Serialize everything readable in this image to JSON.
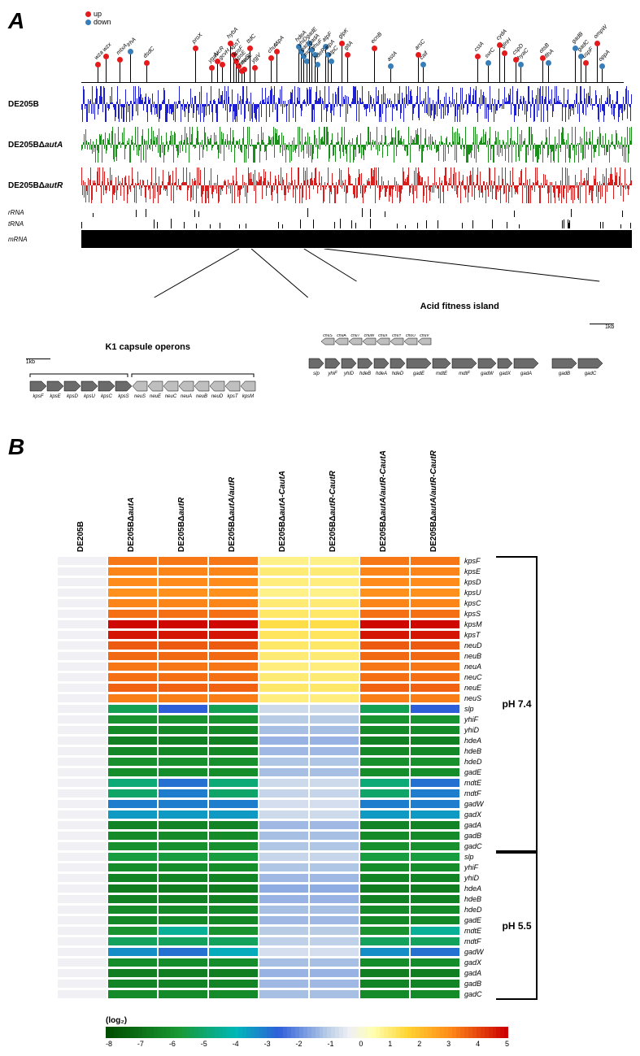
{
  "panelA": {
    "label": "A",
    "legend": {
      "up": "up",
      "up_color": "#e41a1c",
      "down": "down",
      "down_color": "#377eb8"
    },
    "lollipops": [
      {
        "x": 3,
        "h": 18,
        "dir": "up",
        "label": "wza"
      },
      {
        "x": 4.5,
        "h": 28,
        "dir": "up",
        "label": "wzx"
      },
      {
        "x": 7,
        "h": 24,
        "dir": "up",
        "label": "mtxA"
      },
      {
        "x": 9,
        "h": 34,
        "dir": "down",
        "label": "lrhA"
      },
      {
        "x": 12,
        "h": 20,
        "dir": "up",
        "label": "dsdC"
      },
      {
        "x": 21,
        "h": 38,
        "dir": "up",
        "label": "proX"
      },
      {
        "x": 24,
        "h": 14,
        "dir": "up",
        "label": "ygaV"
      },
      {
        "x": 25,
        "h": 22,
        "dir": "up",
        "label": "fucR"
      },
      {
        "x": 26,
        "h": 18,
        "dir": "up",
        "label": "gcvH"
      },
      {
        "x": 27.5,
        "h": 44,
        "dir": "up",
        "label": "hybA"
      },
      {
        "x": 28,
        "h": 30,
        "dir": "up",
        "label": "kpsT"
      },
      {
        "x": 28.5,
        "h": 22,
        "dir": "up",
        "label": "kpsF"
      },
      {
        "x": 29,
        "h": 16,
        "dir": "up",
        "label": "kpsE"
      },
      {
        "x": 29.5,
        "h": 10,
        "dir": "up",
        "label": "neuS"
      },
      {
        "x": 30,
        "h": 12,
        "dir": "up",
        "label": "neuE"
      },
      {
        "x": 31,
        "h": 38,
        "dir": "up",
        "label": "ttdC"
      },
      {
        "x": 32,
        "h": 14,
        "dir": "up",
        "label": "ygjV"
      },
      {
        "x": 35,
        "h": 26,
        "dir": "up",
        "label": "chuV"
      },
      {
        "x": 36,
        "h": 34,
        "dir": "up",
        "label": "cspA"
      },
      {
        "x": 40,
        "h": 40,
        "dir": "down",
        "label": "hdeA"
      },
      {
        "x": 40.5,
        "h": 34,
        "dir": "down",
        "label": "yhiD"
      },
      {
        "x": 41,
        "h": 28,
        "dir": "down",
        "label": "gadX"
      },
      {
        "x": 41.5,
        "h": 22,
        "dir": "down",
        "label": "mdtF"
      },
      {
        "x": 42,
        "h": 44,
        "dir": "down",
        "label": "gadE"
      },
      {
        "x": 42.5,
        "h": 36,
        "dir": "down",
        "label": "gadA"
      },
      {
        "x": 43,
        "h": 30,
        "dir": "down",
        "label": "yhuF"
      },
      {
        "x": 43.5,
        "h": 18,
        "dir": "down",
        "label": "hdeR"
      },
      {
        "x": 45,
        "h": 40,
        "dir": "down",
        "label": "atpF"
      },
      {
        "x": 45.5,
        "h": 30,
        "dir": "down",
        "label": "atpA"
      },
      {
        "x": 46,
        "h": 22,
        "dir": "down",
        "label": "atpC"
      },
      {
        "x": 48,
        "h": 44,
        "dir": "up",
        "label": "glpK"
      },
      {
        "x": 49,
        "h": 30,
        "dir": "up",
        "label": "gltA"
      },
      {
        "x": 54,
        "h": 38,
        "dir": "up",
        "label": "ecnB"
      },
      {
        "x": 57,
        "h": 16,
        "dir": "down",
        "label": "astA"
      },
      {
        "x": 62,
        "h": 30,
        "dir": "up",
        "label": "arsC"
      },
      {
        "x": 63,
        "h": 18,
        "dir": "down",
        "label": "caif"
      },
      {
        "x": 73,
        "h": 28,
        "dir": "up",
        "label": "cstA"
      },
      {
        "x": 75,
        "h": 20,
        "dir": "down",
        "label": "svrC"
      },
      {
        "x": 77,
        "h": 42,
        "dir": "up",
        "label": "cydA"
      },
      {
        "x": 78,
        "h": 32,
        "dir": "up",
        "label": "glnH"
      },
      {
        "x": 80,
        "h": 24,
        "dir": "up",
        "label": "cspD"
      },
      {
        "x": 81,
        "h": 18,
        "dir": "down",
        "label": "hyaC"
      },
      {
        "x": 85,
        "h": 26,
        "dir": "up",
        "label": "otsB"
      },
      {
        "x": 86,
        "h": 20,
        "dir": "down",
        "label": "flhA"
      },
      {
        "x": 91,
        "h": 38,
        "dir": "down",
        "label": "gadB"
      },
      {
        "x": 92,
        "h": 28,
        "dir": "down",
        "label": "gadC"
      },
      {
        "x": 93,
        "h": 20,
        "dir": "up",
        "label": "uspF"
      },
      {
        "x": 95,
        "h": 44,
        "dir": "up",
        "label": "ompW"
      },
      {
        "x": 96,
        "h": 16,
        "dir": "down",
        "label": "oppA"
      }
    ],
    "tracks": [
      {
        "label_prefix": "DE205B",
        "label_suffix": "",
        "color": "#1f1fd6"
      },
      {
        "label_prefix": "DE205BΔ",
        "label_suffix": "autA",
        "color": "#1a8f1a"
      },
      {
        "label_prefix": "DE205BΔ",
        "label_suffix": "autR",
        "color": "#d62020"
      }
    ],
    "rna_labels": [
      "rRNA",
      "tRNA",
      "mRNA"
    ],
    "operons": {
      "k1": {
        "title": "K1 capsule operons",
        "scale": "1kb",
        "genes_fwd": [
          "kpsF",
          "kpsE",
          "kpsD",
          "kpsU",
          "kpsC",
          "kpsS"
        ],
        "genes_rev": [
          "neuS",
          "neuE",
          "neuC",
          "neuA",
          "neuB",
          "neuD",
          "kpsT",
          "kpsM"
        ],
        "dark": "#6b6b6b",
        "light": "#bfbfbf"
      },
      "afi": {
        "title": "Acid fitness island",
        "scale": "1kb",
        "genes_top_rev": [
          "chuS",
          "chuA",
          "chuT",
          "chuW",
          "chuX",
          "chuY",
          "chuU",
          "chuV"
        ],
        "genes_bot": [
          "slp",
          "yhiF",
          "yhiD",
          "hdeB",
          "hdeA",
          "hdeD",
          "gadE",
          "mdtE",
          "mdtF",
          "gadW",
          "gadX",
          "gadA",
          "gadB",
          "gadC"
        ],
        "dark": "#6b6b6b",
        "light": "#bfbfbf"
      }
    }
  },
  "panelB": {
    "label": "B",
    "columns": [
      {
        "pre": "DE205B",
        "suf": ""
      },
      {
        "pre": "DE205BΔ",
        "suf": "autA"
      },
      {
        "pre": "DE205BΔ",
        "suf": "autR"
      },
      {
        "pre": "DE205BΔ",
        "suf": "autA/autR"
      },
      {
        "pre": "DE205BΔ",
        "suf": "autA-CautA"
      },
      {
        "pre": "DE205BΔ",
        "suf": "autR-CautR"
      },
      {
        "pre": "DE205BΔ",
        "suf": "autA/autR-CautA"
      },
      {
        "pre": "DE205BΔ",
        "suf": "autA/autR-CautR"
      }
    ],
    "rows": [
      {
        "g": "kpsF",
        "v": [
          0,
          3.8,
          3.8,
          3.8,
          1.2,
          1.2,
          3.8,
          3.8
        ],
        "ph": "7.4"
      },
      {
        "g": "kpsE",
        "v": [
          0,
          3.6,
          3.6,
          3.6,
          1.4,
          1.4,
          3.6,
          3.6
        ],
        "ph": "7.4"
      },
      {
        "g": "kpsD",
        "v": [
          0,
          3.5,
          3.5,
          3.5,
          1.3,
          1.3,
          3.5,
          3.5
        ],
        "ph": "7.4"
      },
      {
        "g": "kpsU",
        "v": [
          0,
          3.4,
          3.4,
          3.4,
          1.2,
          1.2,
          3.4,
          3.4
        ],
        "ph": "7.4"
      },
      {
        "g": "kpsC",
        "v": [
          0,
          3.6,
          3.6,
          3.6,
          1.4,
          1.4,
          3.6,
          3.6
        ],
        "ph": "7.4"
      },
      {
        "g": "kpsS",
        "v": [
          0,
          3.9,
          3.9,
          3.9,
          1.5,
          1.5,
          3.9,
          3.9
        ],
        "ph": "7.4"
      },
      {
        "g": "kpsM",
        "v": [
          0,
          5.4,
          5.4,
          5.4,
          1.8,
          1.8,
          5.4,
          5.4
        ],
        "ph": "7.4"
      },
      {
        "g": "kpsT",
        "v": [
          0,
          5.2,
          5.2,
          5.2,
          1.6,
          1.6,
          5.2,
          5.2
        ],
        "ph": "7.4"
      },
      {
        "g": "neuD",
        "v": [
          0,
          4.2,
          4.2,
          4.2,
          1.5,
          1.5,
          4.2,
          4.2
        ],
        "ph": "7.4"
      },
      {
        "g": "neuB",
        "v": [
          0,
          4.0,
          4.0,
          4.0,
          1.4,
          1.4,
          4.0,
          4.0
        ],
        "ph": "7.4"
      },
      {
        "g": "neuA",
        "v": [
          0,
          3.8,
          3.8,
          3.8,
          1.3,
          1.3,
          3.8,
          3.8
        ],
        "ph": "7.4"
      },
      {
        "g": "neuC",
        "v": [
          0,
          3.9,
          3.9,
          3.9,
          1.4,
          1.4,
          3.9,
          3.9
        ],
        "ph": "7.4"
      },
      {
        "g": "neuE",
        "v": [
          0,
          4.1,
          4.1,
          4.1,
          1.5,
          1.5,
          4.1,
          4.1
        ],
        "ph": "7.4"
      },
      {
        "g": "neuS",
        "v": [
          0,
          3.7,
          3.7,
          3.7,
          1.3,
          1.3,
          3.7,
          3.7
        ],
        "ph": "7.4"
      },
      {
        "g": "slp",
        "v": [
          0,
          -5.5,
          -2.5,
          -5.5,
          -0.5,
          -0.5,
          -5.5,
          -2.5
        ],
        "ph": "7.4"
      },
      {
        "g": "yhiF",
        "v": [
          0,
          -6.2,
          -6.2,
          -6.2,
          -0.8,
          -0.8,
          -6.2,
          -6.2
        ],
        "ph": "7.4"
      },
      {
        "g": "yhiD",
        "v": [
          0,
          -6.5,
          -6.5,
          -6.5,
          -1.0,
          -1.0,
          -6.5,
          -6.5
        ],
        "ph": "7.4"
      },
      {
        "g": "hdeA",
        "v": [
          0,
          -6.8,
          -6.8,
          -6.8,
          -1.2,
          -1.2,
          -6.8,
          -6.8
        ],
        "ph": "7.4"
      },
      {
        "g": "hdeB",
        "v": [
          0,
          -6.6,
          -6.6,
          -6.6,
          -1.1,
          -1.1,
          -6.6,
          -6.6
        ],
        "ph": "7.4"
      },
      {
        "g": "hdeD",
        "v": [
          0,
          -6.3,
          -6.3,
          -6.3,
          -0.9,
          -0.9,
          -6.3,
          -6.3
        ],
        "ph": "7.4"
      },
      {
        "g": "gadE",
        "v": [
          0,
          -6.4,
          -6.4,
          -6.4,
          -1.0,
          -1.0,
          -6.4,
          -6.4
        ],
        "ph": "7.4"
      },
      {
        "g": "mdtE",
        "v": [
          0,
          -5.0,
          -2.8,
          -5.0,
          -0.5,
          -0.5,
          -5.0,
          -2.8
        ],
        "ph": "7.4"
      },
      {
        "g": "mdtF",
        "v": [
          0,
          -5.2,
          -3.0,
          -5.2,
          -0.6,
          -0.6,
          -5.2,
          -3.0
        ],
        "ph": "7.4"
      },
      {
        "g": "gadW",
        "v": [
          0,
          -3.0,
          -3.0,
          -3.0,
          -0.4,
          -0.4,
          -3.0,
          -3.0
        ],
        "ph": "7.4"
      },
      {
        "g": "gadX",
        "v": [
          0,
          -3.5,
          -3.5,
          -3.5,
          -0.5,
          -0.5,
          -3.5,
          -3.5
        ],
        "ph": "7.4"
      },
      {
        "g": "gadA",
        "v": [
          0,
          -6.7,
          -6.7,
          -6.7,
          -1.1,
          -1.1,
          -6.7,
          -6.7
        ],
        "ph": "7.4"
      },
      {
        "g": "gadB",
        "v": [
          0,
          -6.5,
          -6.5,
          -6.5,
          -1.0,
          -1.0,
          -6.5,
          -6.5
        ],
        "ph": "7.4"
      },
      {
        "g": "gadC",
        "v": [
          0,
          -6.3,
          -6.3,
          -6.3,
          -0.9,
          -0.9,
          -6.3,
          -6.3
        ],
        "ph": "7.4"
      },
      {
        "g": "slp",
        "v": [
          0,
          -5.8,
          -5.8,
          -5.8,
          -0.6,
          -0.6,
          -5.8,
          -5.8
        ],
        "ph": "5.5"
      },
      {
        "g": "yhiF",
        "v": [
          0,
          -6.4,
          -6.4,
          -6.4,
          -0.9,
          -0.9,
          -6.4,
          -6.4
        ],
        "ph": "5.5"
      },
      {
        "g": "yhiD",
        "v": [
          0,
          -6.7,
          -6.7,
          -6.7,
          -1.1,
          -1.1,
          -6.7,
          -6.7
        ],
        "ph": "5.5"
      },
      {
        "g": "hdeA",
        "v": [
          0,
          -7.0,
          -7.0,
          -7.0,
          -1.3,
          -1.3,
          -7.0,
          -7.0
        ],
        "ph": "5.5"
      },
      {
        "g": "hdeB",
        "v": [
          0,
          -6.8,
          -6.8,
          -6.8,
          -1.2,
          -1.2,
          -6.8,
          -6.8
        ],
        "ph": "5.5"
      },
      {
        "g": "hdeD",
        "v": [
          0,
          -6.5,
          -6.5,
          -6.5,
          -1.0,
          -1.0,
          -6.5,
          -6.5
        ],
        "ph": "5.5"
      },
      {
        "g": "gadE",
        "v": [
          0,
          -6.6,
          -6.6,
          -6.6,
          -1.1,
          -1.1,
          -6.6,
          -6.6
        ],
        "ph": "5.5"
      },
      {
        "g": "mdtE",
        "v": [
          0,
          -6.2,
          -4.5,
          -6.2,
          -0.8,
          -0.8,
          -6.2,
          -4.5
        ],
        "ph": "5.5"
      },
      {
        "g": "mdtF",
        "v": [
          0,
          -5.4,
          -5.4,
          -5.4,
          -0.7,
          -0.7,
          -5.4,
          -5.4
        ],
        "ph": "5.5"
      },
      {
        "g": "gadW",
        "v": [
          0,
          -3.3,
          -2.8,
          -3.8,
          -0.4,
          -0.4,
          -3.3,
          -2.8
        ],
        "ph": "5.5"
      },
      {
        "g": "gadX",
        "v": [
          0,
          -6.4,
          -6.4,
          -6.4,
          -1.0,
          -1.0,
          -6.4,
          -6.4
        ],
        "ph": "5.5"
      },
      {
        "g": "gadA",
        "v": [
          0,
          -6.9,
          -6.9,
          -6.9,
          -1.2,
          -1.2,
          -6.9,
          -6.9
        ],
        "ph": "5.5"
      },
      {
        "g": "gadB",
        "v": [
          0,
          -6.7,
          -6.7,
          -6.7,
          -1.1,
          -1.1,
          -6.7,
          -6.7
        ],
        "ph": "5.5"
      },
      {
        "g": "gadC",
        "v": [
          0,
          -6.5,
          -6.5,
          -6.5,
          -1.0,
          -1.0,
          -6.5,
          -6.5
        ],
        "ph": "5.5"
      }
    ],
    "ph_labels": {
      "7.4": "pH 7.4",
      "5.5": "pH 5.5"
    },
    "colorbar": {
      "label": "(log₂)",
      "min": -8.5,
      "max": 5.5,
      "ticks": [
        -8,
        -7,
        -6,
        -5,
        -4,
        -3,
        -2,
        -1,
        0,
        1,
        2,
        3,
        4,
        5
      ],
      "stops": [
        {
          "v": -8.5,
          "c": "#004d00"
        },
        {
          "v": -6,
          "c": "#1a9933"
        },
        {
          "v": -4,
          "c": "#00b8b8"
        },
        {
          "v": -2.5,
          "c": "#2e5fd9"
        },
        {
          "v": -0.8,
          "c": "#b8cce6"
        },
        {
          "v": 0,
          "c": "#f0f0f5"
        },
        {
          "v": 0.8,
          "c": "#ffffb3"
        },
        {
          "v": 2,
          "c": "#ffd633"
        },
        {
          "v": 3.5,
          "c": "#ff8c1a"
        },
        {
          "v": 5.5,
          "c": "#cc0000"
        }
      ]
    }
  }
}
